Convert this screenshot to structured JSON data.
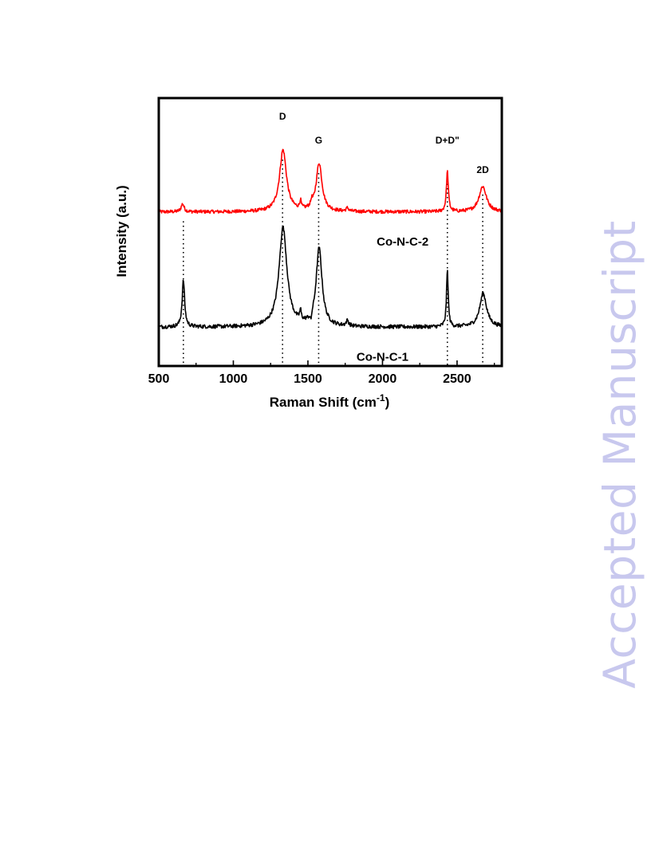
{
  "watermark": "Accepted Manuscript",
  "chart_data": {
    "type": "line",
    "xlabel": "Raman Shift (cm",
    "xlabel_sup": "-1",
    "xlabel_close": ")",
    "ylabel": "Intensity (a.u.)",
    "xlim": [
      500,
      2800
    ],
    "ylim": [
      0,
      100
    ],
    "xticks": [
      500,
      1000,
      1500,
      2000,
      2500
    ],
    "grid": false,
    "y_ticks_visible": false,
    "series": [
      {
        "name": "Co-N-C-2",
        "color": "#ff0000",
        "baseline": 57.5,
        "noise": 0.4,
        "peaks": [
          {
            "x": 660,
            "h": 3.0,
            "w": 12
          },
          {
            "x": 1333,
            "h": 23.0,
            "w": 28
          },
          {
            "x": 1450,
            "h": 3.0,
            "w": 6
          },
          {
            "x": 1525,
            "h": 2.0,
            "w": 6
          },
          {
            "x": 1575,
            "h": 18.0,
            "w": 24
          },
          {
            "x": 1765,
            "h": 1.2,
            "w": 10
          },
          {
            "x": 2435,
            "h": 15.0,
            "w": 8
          },
          {
            "x": 2672,
            "h": 9.5,
            "w": 30
          }
        ]
      },
      {
        "name": "Co-N-C-1",
        "color": "#000000",
        "baseline": 14.5,
        "noise": 0.45,
        "peaks": [
          {
            "x": 665,
            "h": 17.5,
            "w": 10
          },
          {
            "x": 1333,
            "h": 37.0,
            "w": 32
          },
          {
            "x": 1450,
            "h": 3.5,
            "w": 6
          },
          {
            "x": 1520,
            "h": -3.0,
            "w": 5
          },
          {
            "x": 1575,
            "h": 29.0,
            "w": 24
          },
          {
            "x": 1765,
            "h": 2.0,
            "w": 10
          },
          {
            "x": 2435,
            "h": 21.0,
            "w": 7
          },
          {
            "x": 2675,
            "h": 12.5,
            "w": 28
          }
        ]
      }
    ],
    "series_labels": [
      {
        "text": "Co-N-C-2",
        "x": 2135,
        "y": 45
      },
      {
        "text": "Co-N-C-1",
        "x": 2000,
        "y": 2
      }
    ],
    "peak_labels": [
      {
        "text": "D",
        "x": 1330,
        "y": 92
      },
      {
        "text": "G",
        "x": 1572,
        "y": 83
      },
      {
        "text": "D+D\"",
        "x": 2435,
        "y": 83
      },
      {
        "text": "2D",
        "x": 2672,
        "y": 72
      }
    ],
    "reference_lines": [
      {
        "x": 665,
        "y_top": 54,
        "y_bottom": 0
      },
      {
        "x": 1330,
        "y_top": 77,
        "y_bottom": 0
      },
      {
        "x": 1572,
        "y_top": 72,
        "y_bottom": 0
      },
      {
        "x": 2435,
        "y_top": 68,
        "y_bottom": 0
      },
      {
        "x": 2672,
        "y_top": 64,
        "y_bottom": 0
      }
    ]
  }
}
